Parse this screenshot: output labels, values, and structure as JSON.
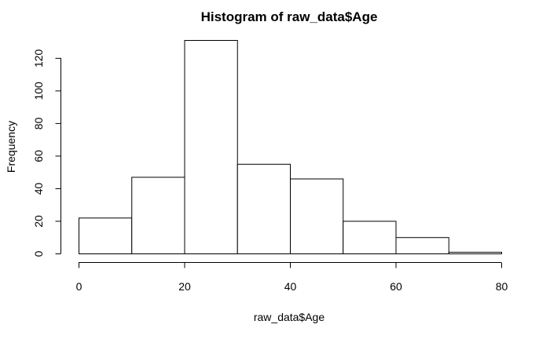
{
  "chart_data": {
    "type": "bar",
    "title": "Histogram of raw_data$Age",
    "xlabel": "raw_data$Age",
    "ylabel": "Frequency",
    "bins": [
      {
        "start": 0,
        "end": 10,
        "count": 22
      },
      {
        "start": 10,
        "end": 20,
        "count": 47
      },
      {
        "start": 20,
        "end": 30,
        "count": 131
      },
      {
        "start": 30,
        "end": 40,
        "count": 55
      },
      {
        "start": 40,
        "end": 50,
        "count": 46
      },
      {
        "start": 50,
        "end": 60,
        "count": 20
      },
      {
        "start": 60,
        "end": 70,
        "count": 10
      },
      {
        "start": 70,
        "end": 80,
        "count": 1
      }
    ],
    "xticks": [
      0,
      20,
      40,
      60,
      80
    ],
    "yticks": [
      0,
      20,
      40,
      60,
      80,
      100,
      120
    ],
    "xlim": [
      0,
      80
    ],
    "ylim": [
      0,
      131
    ],
    "grid": false
  }
}
